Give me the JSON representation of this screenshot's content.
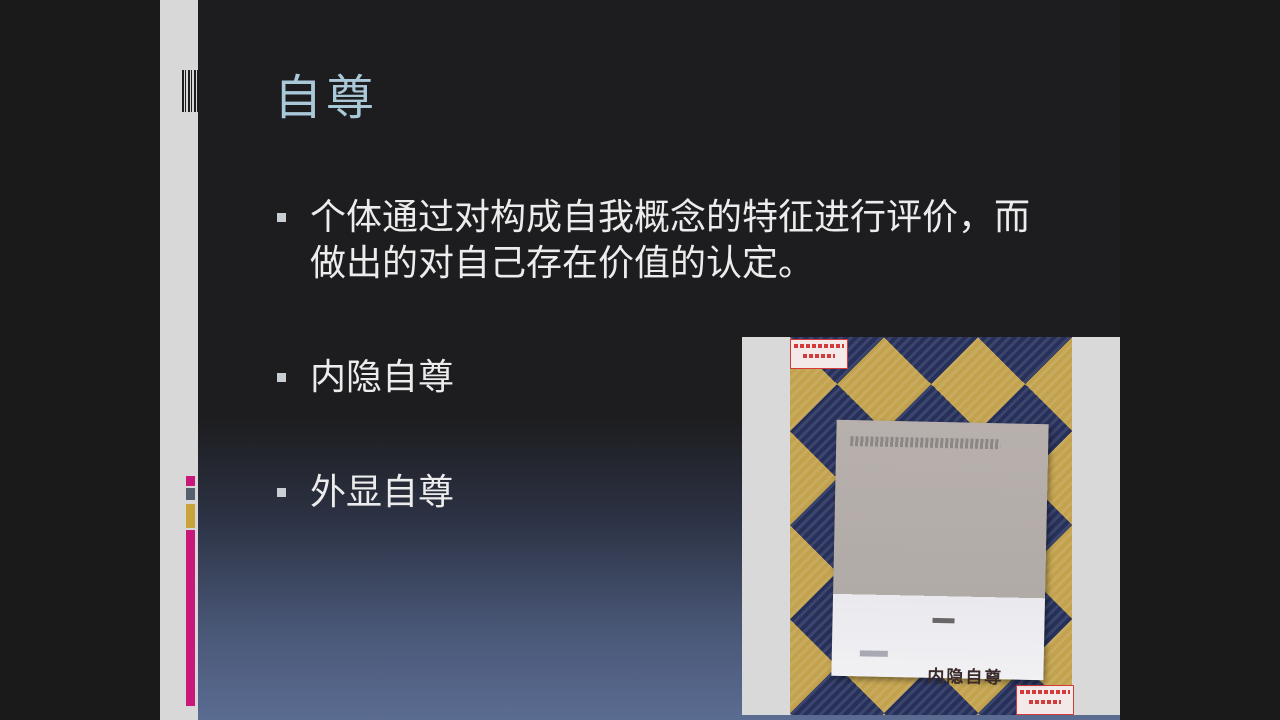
{
  "slide": {
    "title": "自尊",
    "bullets": [
      "个体通过对构成自我概念的特征进行评价，而做出的对自己存在价值的认定。",
      "内隐自尊",
      "外显自尊"
    ]
  },
  "image": {
    "book_title": "内隐自尊"
  },
  "colors": {
    "background": "#1d1d1f",
    "title": "#a9c8d8",
    "text": "#ececec",
    "accent_magenta": "#c8187a",
    "accent_gold": "#c9a23a",
    "accent_gray": "#55606e"
  }
}
